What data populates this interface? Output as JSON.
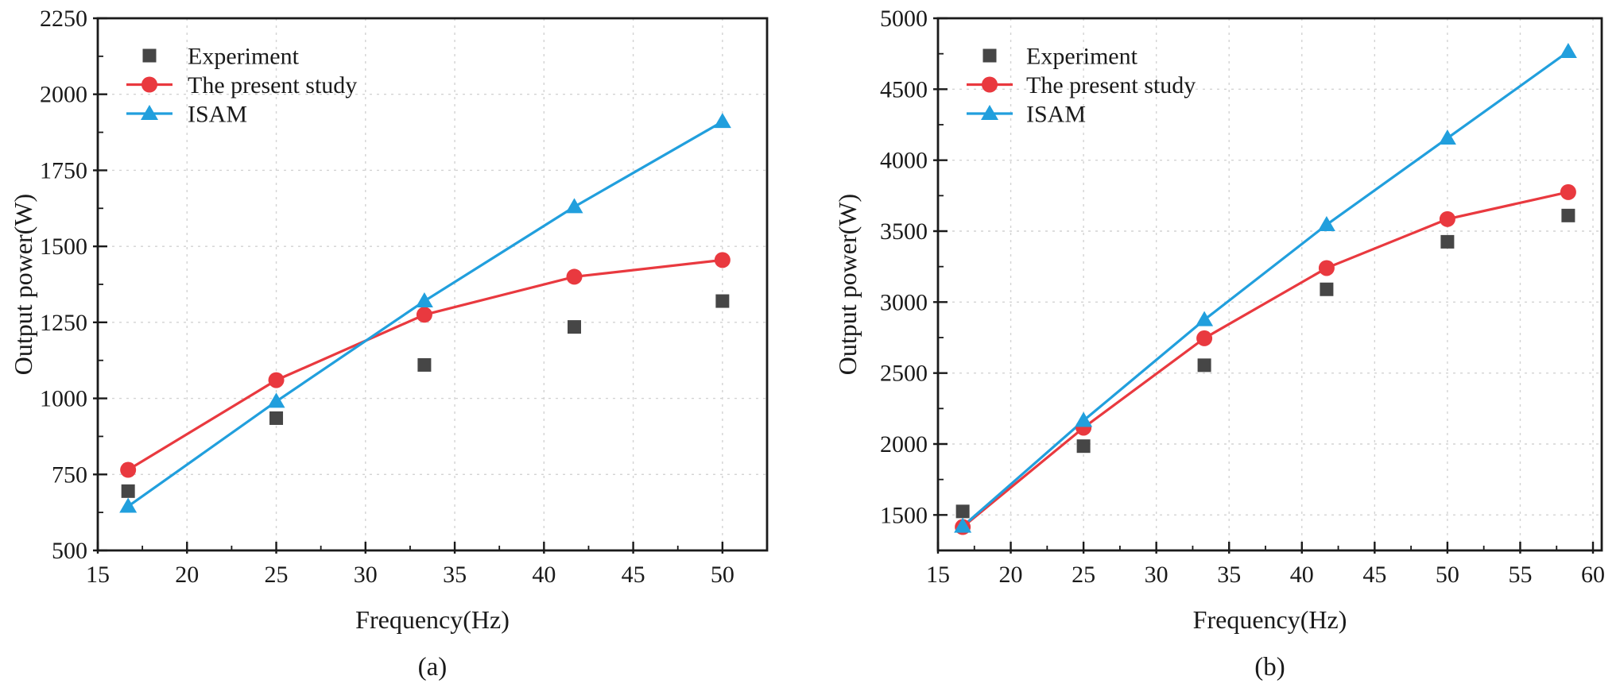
{
  "figure": {
    "background": "#ffffff",
    "axis_color": "#1a1a1a",
    "grid_color": "#d3d3d3"
  },
  "chart_data": [
    {
      "type": "line",
      "caption": "(a)",
      "xlabel": "Frequency(Hz)",
      "ylabel": "Output power(W)",
      "xlim": [
        15,
        52.5
      ],
      "ylim": [
        500,
        2250
      ],
      "xticks": [
        15,
        20,
        25,
        30,
        35,
        40,
        45,
        50
      ],
      "yticks": [
        500,
        750,
        1000,
        1250,
        1500,
        1750,
        2000,
        2250
      ],
      "x_minor_step": 2.5,
      "y_minor_step": 125,
      "grid": true,
      "legend_position": "upper-left",
      "x": [
        16.7,
        25,
        33.3,
        41.7,
        50
      ],
      "series": [
        {
          "name": "Experiment",
          "marker": "square",
          "color": "#464646",
          "line": false,
          "values": [
            695,
            935,
            1110,
            1235,
            1320
          ]
        },
        {
          "name": "The present study",
          "marker": "circle",
          "color": "#e9393f",
          "line": true,
          "values": [
            765,
            1060,
            1275,
            1400,
            1455
          ]
        },
        {
          "name": "ISAM",
          "marker": "triangle",
          "color": "#219fdd",
          "line": true,
          "values": [
            645,
            990,
            1320,
            1630,
            1910
          ]
        }
      ]
    },
    {
      "type": "line",
      "caption": "(b)",
      "xlabel": "Frequency(Hz)",
      "ylabel": "Output power(W)",
      "xlim": [
        15,
        60.6
      ],
      "ylim": [
        1250,
        5000
      ],
      "xticks": [
        15,
        20,
        25,
        30,
        35,
        40,
        45,
        50,
        55,
        60
      ],
      "yticks": [
        1500,
        2000,
        2500,
        3000,
        3500,
        4000,
        4500,
        5000
      ],
      "x_minor_step": 2.5,
      "y_minor_step": 250,
      "grid": true,
      "legend_position": "upper-left",
      "x": [
        16.7,
        25,
        33.3,
        41.7,
        50,
        58.3
      ],
      "series": [
        {
          "name": "Experiment",
          "marker": "square",
          "color": "#464646",
          "line": false,
          "values": [
            1525,
            1985,
            2555,
            3090,
            3425,
            3610
          ]
        },
        {
          "name": "The present study",
          "marker": "circle",
          "color": "#e9393f",
          "line": true,
          "values": [
            1415,
            2115,
            2745,
            3240,
            3585,
            3775
          ]
        },
        {
          "name": "ISAM",
          "marker": "triangle",
          "color": "#219fdd",
          "line": true,
          "values": [
            1420,
            2165,
            2875,
            3545,
            4155,
            4765
          ]
        }
      ]
    }
  ]
}
